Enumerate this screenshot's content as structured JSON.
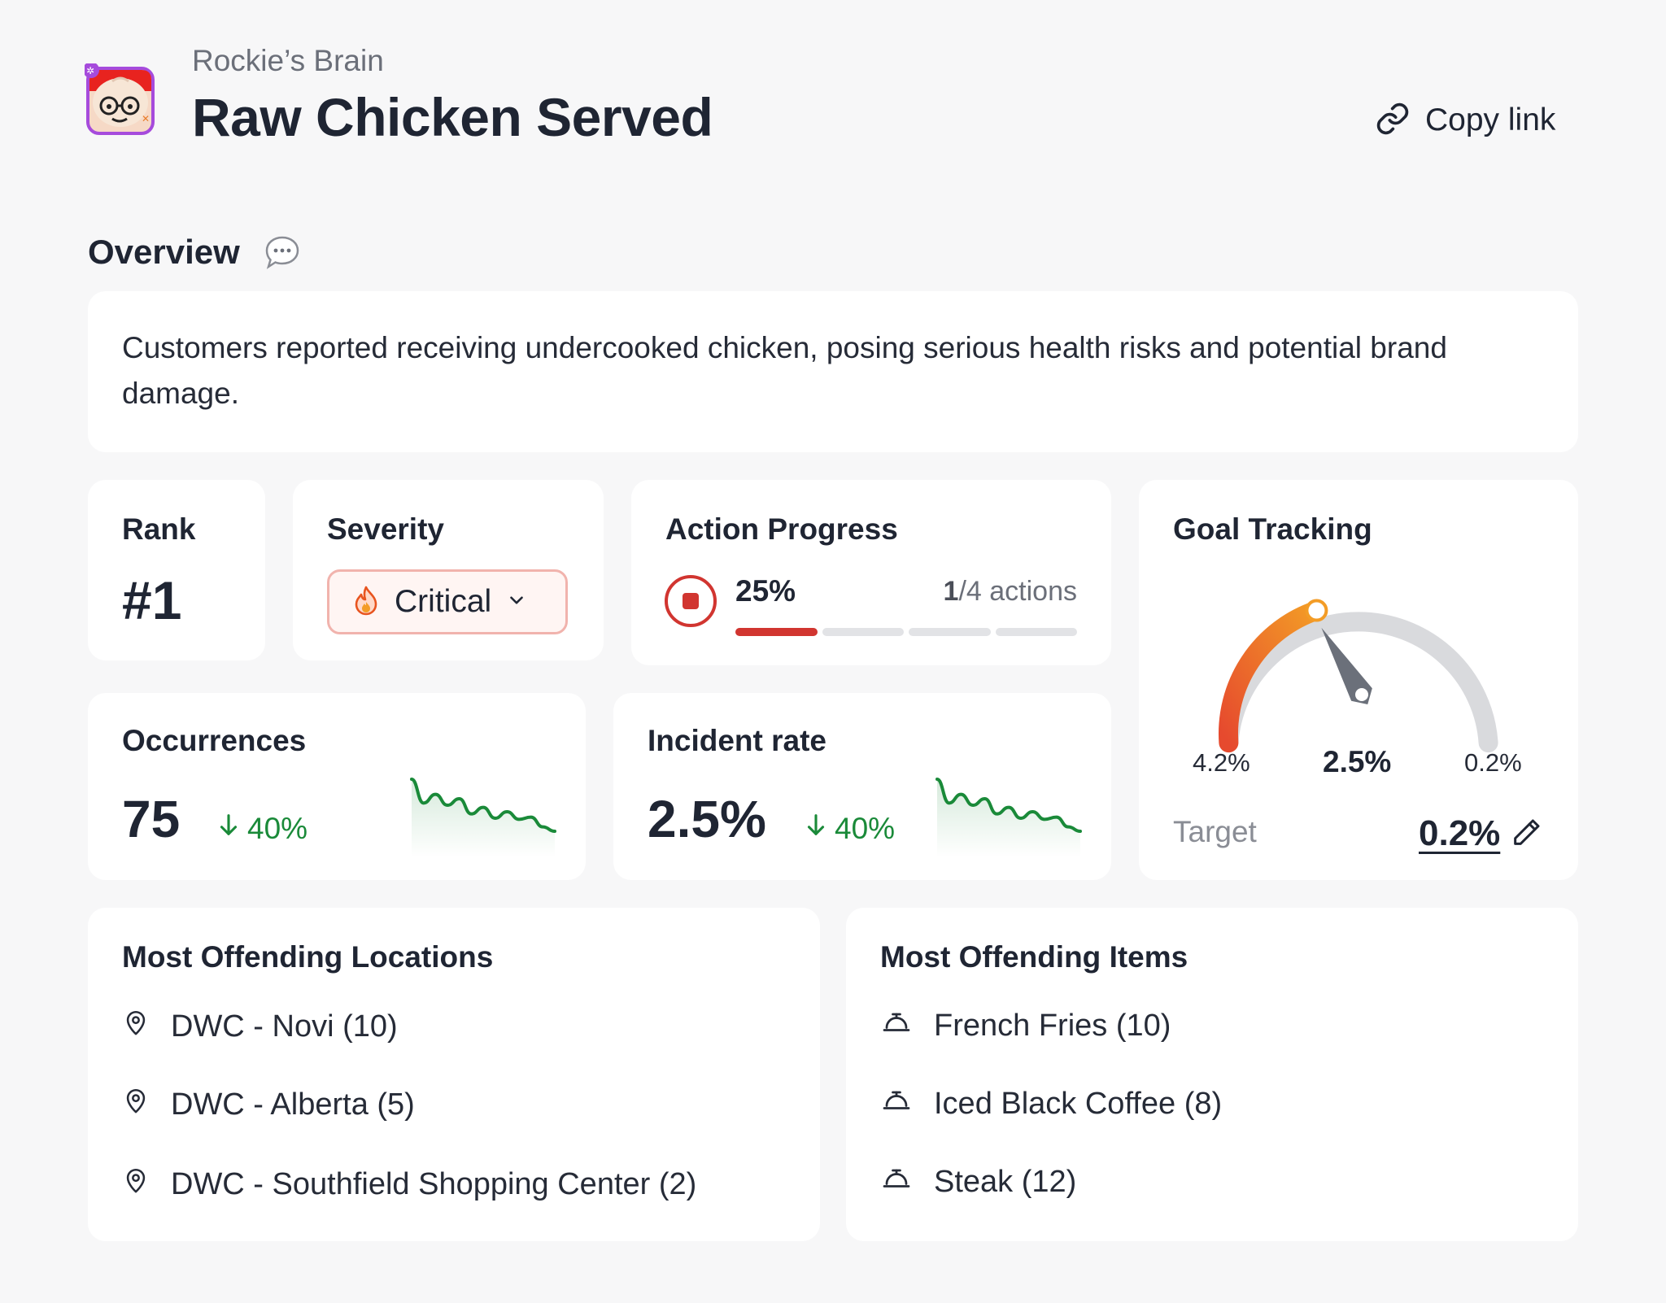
{
  "header": {
    "app_name": "Rockie’s Brain",
    "title": "Raw Chicken Served",
    "copy_link_label": "Copy link",
    "app_icon": "rockie-avatar-icon"
  },
  "overview": {
    "title": "Overview",
    "description": "Customers reported receiving undercooked chicken, posing serious health risks and potential brand damage."
  },
  "rank": {
    "title": "Rank",
    "value": "#1"
  },
  "severity": {
    "title": "Severity",
    "value": "Critical",
    "icon": "fire-icon",
    "color": "#d13530"
  },
  "action_progress": {
    "title": "Action Progress",
    "percent_label": "25%",
    "completed": "1",
    "total_label": "/4 actions",
    "progress": 0.25,
    "segments_total": 4,
    "segments_done": 1
  },
  "goal_tracking": {
    "title": "Goal Tracking",
    "min_label": "4.2%",
    "current_label": "2.5%",
    "max_label": "0.2%",
    "target_label": "Target",
    "target_value": "0.2%",
    "gauge_fraction": 0.4,
    "gradient_colors": [
      "#e64a2e",
      "#f39c26"
    ]
  },
  "occurrences": {
    "title": "Occurrences",
    "value": "75",
    "delta": "40%",
    "trend": [
      62,
      40,
      48,
      38,
      44,
      30,
      36,
      26,
      32,
      25,
      27,
      18,
      14
    ]
  },
  "incident_rate": {
    "title": "Incident rate",
    "value": "2.5%",
    "delta": "40%",
    "trend": [
      62,
      40,
      48,
      38,
      44,
      30,
      36,
      26,
      32,
      25,
      27,
      18,
      14
    ]
  },
  "locations": {
    "title": "Most Offending Locations",
    "items": [
      "DWC - Novi (10)",
      "DWC - Alberta (5)",
      "DWC - Southfield Shopping Center (2)"
    ]
  },
  "menu_items": {
    "title": "Most Offending Items",
    "items": [
      "French Fries (10)",
      "Iced Black Coffee (8)",
      "Steak (12)"
    ]
  },
  "colors": {
    "positive": "#1a8a39",
    "critical": "#d13530",
    "track": "#d9dadd"
  }
}
